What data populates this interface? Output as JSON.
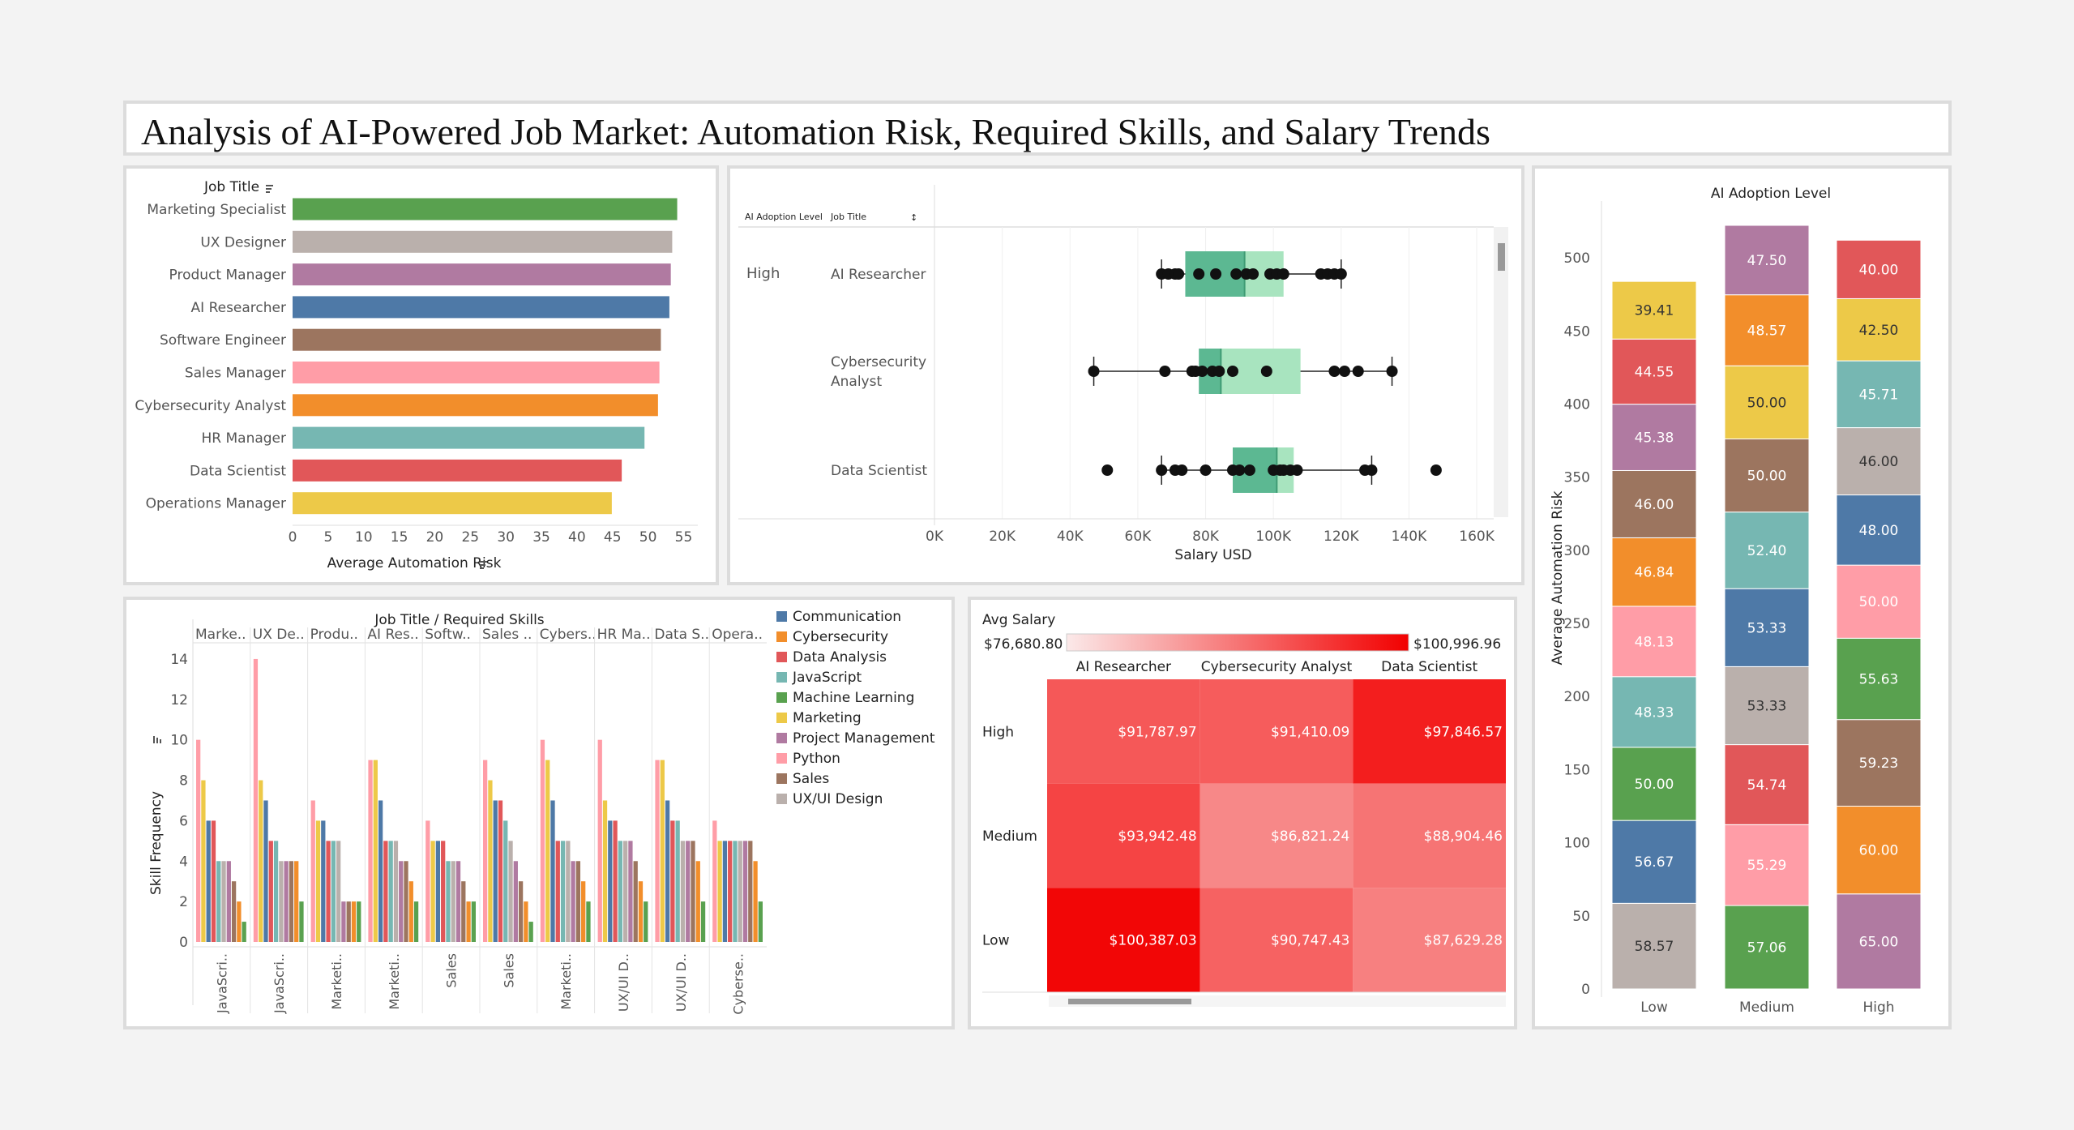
{
  "title": "Analysis of AI-Powered Job Market: Automation Risk, Required Skills, and Salary Trends",
  "colors": {
    "Communication": "#4e79a7",
    "Cybersecurity": "#f28e2b",
    "Data Analysis": "#e15759",
    "JavaScript": "#76b7b2",
    "Machine Learning": "#59a14f",
    "Marketing": "#edc948",
    "Project Management": "#b07aa1",
    "Python": "#ff9da7",
    "Sales": "#9c755f",
    "UX/UI Design": "#bab0ac"
  },
  "panel1": {
    "header": "Job Title",
    "xlabel": "Average Automation Risk",
    "ticks": [
      "0",
      "5",
      "10",
      "15",
      "20",
      "25",
      "30",
      "35",
      "40",
      "45",
      "50",
      "55"
    ],
    "chart_data": {
      "type": "bar",
      "orientation": "horizontal",
      "categories": [
        "Marketing Specialist",
        "UX Designer",
        "Product Manager",
        "AI Researcher",
        "Software Engineer",
        "Sales Manager",
        "Cybersecurity Analyst",
        "HR Manager",
        "Data Scientist",
        "Operations Manager"
      ],
      "values": [
        54.1,
        53.4,
        53.2,
        53.0,
        51.8,
        51.6,
        51.4,
        49.5,
        46.3,
        44.9
      ],
      "colors": [
        "#59a14f",
        "#bab0ac",
        "#b07aa1",
        "#4e79a7",
        "#9c755f",
        "#ff9da7",
        "#f28e2b",
        "#76b7b2",
        "#e15759",
        "#edc948"
      ],
      "xlim": [
        0,
        57
      ]
    }
  },
  "panel2": {
    "col_header_1": "AI Adoption Level",
    "col_header_2": "Job Title",
    "xlabel": "Salary USD",
    "ticks": [
      "0K",
      "20K",
      "40K",
      "60K",
      "80K",
      "100K",
      "120K",
      "140K",
      "160K"
    ],
    "level": "High",
    "chart_data": {
      "type": "box",
      "categories": [
        "AI Researcher",
        "Cybersecurity Analyst",
        "Data Scientist"
      ],
      "boxes": [
        {
          "min": 67000,
          "q1": 74000,
          "median": 91500,
          "q3": 103000,
          "max": 120000,
          "points": [
            67000,
            69000,
            71000,
            72000,
            78000,
            83000,
            89000,
            92000,
            94000,
            99000,
            101000,
            103000,
            114000,
            116000,
            118000,
            120000
          ]
        },
        {
          "min": 47000,
          "q1": 78000,
          "median": 84500,
          "q3": 108000,
          "max": 135000,
          "points": [
            47000,
            68000,
            76000,
            77000,
            79000,
            82000,
            84000,
            88000,
            98000,
            118000,
            121000,
            125000,
            135000
          ]
        },
        {
          "min": 67000,
          "q1": 88000,
          "median": 101000,
          "q3": 106000,
          "max": 129000,
          "points": [
            51000,
            67000,
            71000,
            73000,
            80000,
            88000,
            90000,
            93000,
            100000,
            102000,
            103000,
            105000,
            107000,
            127000,
            129000,
            148000
          ]
        }
      ],
      "xlim": [
        0,
        165000
      ]
    }
  },
  "panel3": {
    "header": "Job Title  /  Required Skills",
    "ylabel": "Skill Frequency",
    "yticks": [
      "0",
      "2",
      "4",
      "6",
      "8",
      "10",
      "12",
      "14"
    ],
    "chart_data": {
      "type": "bar",
      "groups": [
        "Marke..",
        "UX De..",
        "Produ..",
        "AI Res..",
        "Softw..",
        "Sales ..",
        "Cybers..",
        "HR Ma..",
        "Data S..",
        "Opera.."
      ],
      "bottom_labels": [
        "JavaScri..",
        "JavaScri..",
        "Marketi..",
        "Marketi..",
        "Sales",
        "Sales",
        "Marketi..",
        "UX/UI D..",
        "UX/UI D..",
        "Cyberse.."
      ],
      "skills": [
        "Python",
        "Marketing",
        "Communication",
        "Data Analysis",
        "JavaScript",
        "UX/UI Design",
        "Project Management",
        "Sales",
        "Cybersecurity",
        "Machine Learning"
      ],
      "values": [
        [
          10,
          8,
          6,
          6,
          4,
          4,
          4,
          3,
          2,
          1
        ],
        [
          14,
          8,
          7,
          5,
          5,
          4,
          4,
          4,
          4,
          2
        ],
        [
          7,
          6,
          6,
          5,
          5,
          5,
          2,
          2,
          2,
          2
        ],
        [
          9,
          9,
          7,
          5,
          5,
          5,
          4,
          4,
          3,
          2
        ],
        [
          6,
          5,
          5,
          5,
          4,
          4,
          4,
          3,
          2,
          2
        ],
        [
          9,
          8,
          7,
          7,
          6,
          5,
          4,
          3,
          2,
          1
        ],
        [
          10,
          9,
          7,
          5,
          5,
          5,
          4,
          4,
          3,
          2
        ],
        [
          10,
          7,
          6,
          6,
          5,
          5,
          5,
          4,
          3,
          2
        ],
        [
          9,
          9,
          7,
          6,
          6,
          5,
          5,
          5,
          4,
          2
        ],
        [
          6,
          5,
          5,
          5,
          5,
          5,
          5,
          5,
          4,
          2
        ]
      ],
      "ylim": [
        0,
        15
      ]
    }
  },
  "legend3": [
    "Communication",
    "Cybersecurity",
    "Data Analysis",
    "JavaScript",
    "Machine Learning",
    "Marketing",
    "Project Management",
    "Python",
    "Sales",
    "UX/UI Design"
  ],
  "panel4": {
    "legend_title": "Avg Salary",
    "min_label": "$76,680.80",
    "max_label": "$100,996.96",
    "chart_data": {
      "type": "heatmap",
      "columns": [
        "AI Researcher",
        "Cybersecurity Analyst",
        "Data Scientist"
      ],
      "rows": [
        "High",
        "Medium",
        "Low"
      ],
      "values": [
        [
          91787.97,
          91410.09,
          97846.57
        ],
        [
          93942.48,
          86821.24,
          88904.46
        ],
        [
          100387.03,
          90747.43,
          87629.28
        ]
      ],
      "labels": [
        [
          "$91,787.97",
          "$91,410.09",
          "$97,846.57"
        ],
        [
          "$93,942.48",
          "$86,821.24",
          "$88,904.46"
        ],
        [
          "$100,387.03",
          "$90,747.43",
          "$87,629.28"
        ]
      ],
      "range": [
        76680.8,
        100996.96
      ]
    }
  },
  "panel5": {
    "header": "AI Adoption Level",
    "ylabel": "Average Automation Risk",
    "yticks": [
      "0",
      "50",
      "100",
      "150",
      "200",
      "250",
      "300",
      "350",
      "400",
      "450",
      "500"
    ],
    "chart_data": {
      "type": "stacked-bar",
      "categories": [
        "Low",
        "Medium",
        "High"
      ],
      "stacks": [
        [
          {
            "v": 58.57,
            "c": "#bab0ac"
          },
          {
            "v": 56.67,
            "c": "#4e79a7"
          },
          {
            "v": 50.0,
            "c": "#59a14f"
          },
          {
            "v": 48.33,
            "c": "#76b7b2"
          },
          {
            "v": 48.13,
            "c": "#ff9da7"
          },
          {
            "v": 46.84,
            "c": "#f28e2b"
          },
          {
            "v": 46.0,
            "c": "#9c755f"
          },
          {
            "v": 45.38,
            "c": "#b07aa1"
          },
          {
            "v": 44.55,
            "c": "#e15759"
          },
          {
            "v": 39.41,
            "c": "#edc948"
          }
        ],
        [
          {
            "v": 57.06,
            "c": "#59a14f"
          },
          {
            "v": 55.29,
            "c": "#ff9da7"
          },
          {
            "v": 54.74,
            "c": "#e15759"
          },
          {
            "v": 53.33,
            "c": "#bab0ac"
          },
          {
            "v": 53.33,
            "c": "#4e79a7"
          },
          {
            "v": 52.4,
            "c": "#76b7b2"
          },
          {
            "v": 50.0,
            "c": "#9c755f"
          },
          {
            "v": 50.0,
            "c": "#edc948"
          },
          {
            "v": 48.57,
            "c": "#f28e2b"
          },
          {
            "v": 47.5,
            "c": "#b07aa1"
          }
        ],
        [
          {
            "v": 65.0,
            "c": "#b07aa1"
          },
          {
            "v": 60.0,
            "c": "#f28e2b"
          },
          {
            "v": 59.23,
            "c": "#9c755f"
          },
          {
            "v": 55.63,
            "c": "#59a14f"
          },
          {
            "v": 50.0,
            "c": "#ff9da7"
          },
          {
            "v": 48.0,
            "c": "#4e79a7"
          },
          {
            "v": 46.0,
            "c": "#bab0ac"
          },
          {
            "v": 45.71,
            "c": "#76b7b2"
          },
          {
            "v": 42.5,
            "c": "#edc948"
          },
          {
            "v": 40.0,
            "c": "#e15759"
          }
        ]
      ],
      "ylim": [
        0,
        520
      ]
    }
  }
}
